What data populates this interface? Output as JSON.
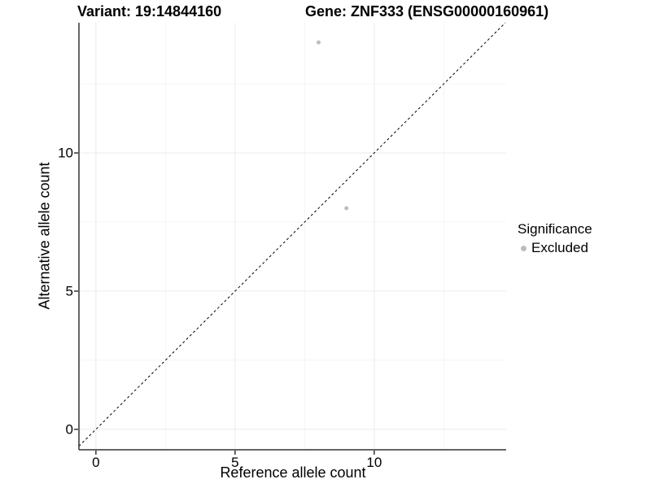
{
  "colors": {
    "background": "#ffffff",
    "axis_line": "#333333",
    "tick_mark": "#333333",
    "grid_major": "#ebebeb",
    "grid_minor": "#f4f4f4",
    "reference_line": "#000000",
    "point": "#bdbdbd",
    "text": "#000000"
  },
  "chart_data": {
    "type": "scatter",
    "title_left": "Variant: 19:14844160",
    "title_right": "Gene: ZNF333 (ENSG00000160961)",
    "xlabel": "Reference allele count",
    "ylabel": "Alternative allele count",
    "x_ticks": [
      0,
      5,
      10
    ],
    "y_ticks": [
      0,
      5,
      10
    ],
    "x_minor_ticks": [
      2.5,
      7.5,
      12.5
    ],
    "y_minor_ticks": [
      2.5,
      7.5,
      12.5
    ],
    "x_range": [
      -0.61,
      14.74
    ],
    "y_range": [
      -0.74,
      14.71
    ],
    "grid": true,
    "series": [
      {
        "name": "Excluded",
        "color": "#bdbdbd",
        "point_radius": 2.5,
        "points": [
          {
            "x": 8,
            "y": 14
          },
          {
            "x": 9,
            "y": 8
          }
        ]
      }
    ],
    "reference_line": {
      "slope": 1,
      "intercept": 0,
      "style": "dashed"
    },
    "legend": {
      "position": "right",
      "title": "Significance",
      "items": [
        {
          "label": "Excluded",
          "color": "#bdbdbd"
        }
      ]
    }
  }
}
